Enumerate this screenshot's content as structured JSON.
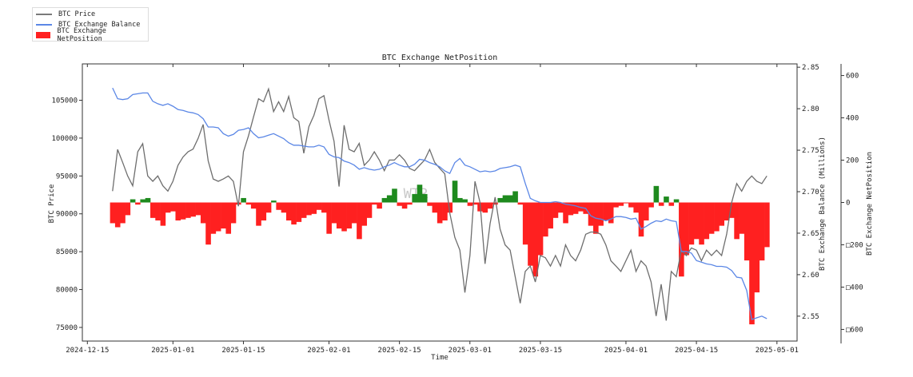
{
  "legend": [
    {
      "label": "BTC Price",
      "color": "#7a7a7a"
    },
    {
      "label": "BTC Exchange Balance",
      "color": "#5b87e6"
    },
    {
      "label": "BTC Exchange NetPosition",
      "color": "#ff2020"
    }
  ],
  "watermark": "WTR",
  "chart_data": {
    "type": "line",
    "title": "BTC Exchange NetPosition",
    "xlabel": "Time",
    "ylabel_left": "BTC Price",
    "ylabel_right": "BTC Exchange Balance (Millions)",
    "ylabel_right2": "BTC Exchange NetPosition",
    "x_start": "2024-12-20",
    "x_step": "1 day",
    "xlim": [
      "2024-12-14",
      "2025-05-05"
    ],
    "x_ticks": [
      "2024-12-15",
      "2025-01-01",
      "2025-01-15",
      "2025-02-01",
      "2025-02-15",
      "2025-03-01",
      "2025-03-15",
      "2025-04-01",
      "2025-04-15",
      "2025-05-01"
    ],
    "y_left": {
      "ylim": [
        73200,
        109800
      ],
      "ticks": [
        75000,
        80000,
        85000,
        90000,
        95000,
        100000,
        105000
      ],
      "tick_labels": [
        "75000",
        "80000",
        "85000",
        "90000",
        "95000",
        "100000",
        "105000"
      ]
    },
    "y_right": {
      "ylim": [
        2.52,
        2.854
      ],
      "ticks": [
        2.55,
        2.6,
        2.65,
        2.7,
        2.75,
        2.8,
        2.85
      ],
      "tick_labels": [
        "2.55",
        "2.60",
        "2.65",
        "2.70",
        "2.75",
        "2.80",
        "2.85"
      ]
    },
    "y_right2": {
      "ylim": [
        -655,
        655
      ],
      "ticks": [
        -600,
        -400,
        -200,
        0,
        200,
        400,
        600
      ],
      "tick_labels": [
        "□600",
        "□400",
        "□200",
        "0",
        "200",
        "400",
        "600"
      ]
    },
    "colors": {
      "price": "#6e6e6e",
      "balance": "#5b87e6",
      "net_negative": "#ff2020",
      "net_positive": "#1e8a1e"
    },
    "series": [
      {
        "name": "BTC Price",
        "axis": "left",
        "values": [
          93000,
          98500,
          96800,
          95000,
          93700,
          98200,
          99260,
          95000,
          94300,
          95000,
          93700,
          93000,
          94300,
          96400,
          97500,
          98200,
          98550,
          99960,
          101800,
          97000,
          94600,
          94300,
          94600,
          95000,
          94300,
          91000,
          98200,
          100300,
          102800,
          105200,
          104800,
          106500,
          103500,
          104800,
          103500,
          105500,
          102700,
          102200,
          98000,
          101500,
          103000,
          105200,
          105600,
          102400,
          99600,
          93600,
          101700,
          98500,
          98200,
          99300,
          96400,
          97100,
          98200,
          97100,
          95700,
          97100,
          97100,
          97800,
          97100,
          96000,
          95700,
          96400,
          97100,
          98500,
          96800,
          96000,
          95300,
          90100,
          86900,
          85200,
          79600,
          84500,
          94300,
          91500,
          83400,
          88700,
          92200,
          88000,
          85900,
          85200,
          81700,
          78200,
          82400,
          83100,
          81000,
          84500,
          84200,
          83100,
          84500,
          83100,
          85900,
          84500,
          83800,
          85200,
          87300,
          87600,
          87600,
          87300,
          85900,
          83800,
          83100,
          82400,
          83800,
          85200,
          82400,
          83800,
          83100,
          81000,
          76500,
          80700,
          75900,
          82400,
          81700,
          85200,
          84500,
          85500,
          85200,
          83800,
          85200,
          84500,
          85200,
          84500,
          87300,
          91500,
          94000,
          93000,
          94300,
          95000,
          94300,
          94000,
          95000
        ]
      },
      {
        "name": "BTC Exchange Balance",
        "axis": "right",
        "values": [
          2.825,
          2.812,
          2.811,
          2.812,
          2.817,
          2.818,
          2.819,
          2.819,
          2.809,
          2.806,
          2.804,
          2.806,
          2.803,
          2.799,
          2.798,
          2.796,
          2.795,
          2.793,
          2.788,
          2.778,
          2.778,
          2.777,
          2.77,
          2.767,
          2.769,
          2.774,
          2.775,
          2.777,
          2.77,
          2.765,
          2.766,
          2.768,
          2.77,
          2.767,
          2.764,
          2.759,
          2.756,
          2.756,
          2.755,
          2.754,
          2.754,
          2.756,
          2.754,
          2.745,
          2.742,
          2.741,
          2.737,
          2.735,
          2.732,
          2.727,
          2.729,
          2.727,
          2.726,
          2.727,
          2.73,
          2.732,
          2.735,
          2.732,
          2.73,
          2.73,
          2.733,
          2.739,
          2.738,
          2.735,
          2.733,
          2.73,
          2.725,
          2.722,
          2.735,
          2.74,
          2.732,
          2.73,
          2.727,
          2.724,
          2.725,
          2.724,
          2.725,
          2.728,
          2.729,
          2.73,
          2.732,
          2.73,
          2.71,
          2.692,
          2.689,
          2.687,
          2.687,
          2.687,
          2.688,
          2.687,
          2.685,
          2.684,
          2.683,
          2.681,
          2.68,
          2.671,
          2.668,
          2.667,
          2.665,
          2.667,
          2.67,
          2.67,
          2.669,
          2.667,
          2.668,
          2.655,
          2.658,
          2.662,
          2.665,
          2.664,
          2.667,
          2.665,
          2.664,
          2.628,
          2.628,
          2.626,
          2.617,
          2.615,
          2.613,
          2.612,
          2.61,
          2.61,
          2.609,
          2.605,
          2.597,
          2.596,
          2.581,
          2.546,
          2.548,
          2.55,
          2.547
        ]
      },
      {
        "name": "BTC Exchange NetPosition",
        "axis": "right2",
        "type": "bar",
        "values": [
          -98,
          -117,
          -98,
          -60,
          15,
          -10,
          15,
          21,
          -73,
          -85,
          -110,
          -48,
          -42,
          -85,
          -80,
          -73,
          -67,
          -60,
          -98,
          -199,
          -148,
          -136,
          -123,
          -148,
          -98,
          -10,
          21,
          -10,
          -29,
          -110,
          -85,
          -48,
          9,
          -35,
          -48,
          -85,
          -104,
          -92,
          -73,
          -60,
          -54,
          -35,
          -48,
          -148,
          -98,
          -123,
          -136,
          -123,
          -98,
          -173,
          -110,
          -73,
          -10,
          -29,
          21,
          34,
          65,
          -16,
          -29,
          -10,
          40,
          84,
          40,
          -16,
          -48,
          -98,
          -85,
          -48,
          103,
          21,
          15,
          -16,
          -10,
          -42,
          -48,
          -29,
          -10,
          21,
          34,
          34,
          53,
          -10,
          -199,
          -299,
          -350,
          -249,
          -161,
          -123,
          -73,
          -48,
          -98,
          -60,
          -54,
          -42,
          -54,
          -110,
          -148,
          -110,
          -85,
          -98,
          -23,
          -16,
          -4,
          -23,
          -48,
          -161,
          -85,
          -23,
          78,
          -16,
          28,
          -16,
          15,
          -350,
          -249,
          -199,
          -173,
          -199,
          -173,
          -148,
          -136,
          -110,
          -85,
          -73,
          -173,
          -148,
          -274,
          -576,
          -425,
          -274,
          -211
        ]
      }
    ]
  }
}
